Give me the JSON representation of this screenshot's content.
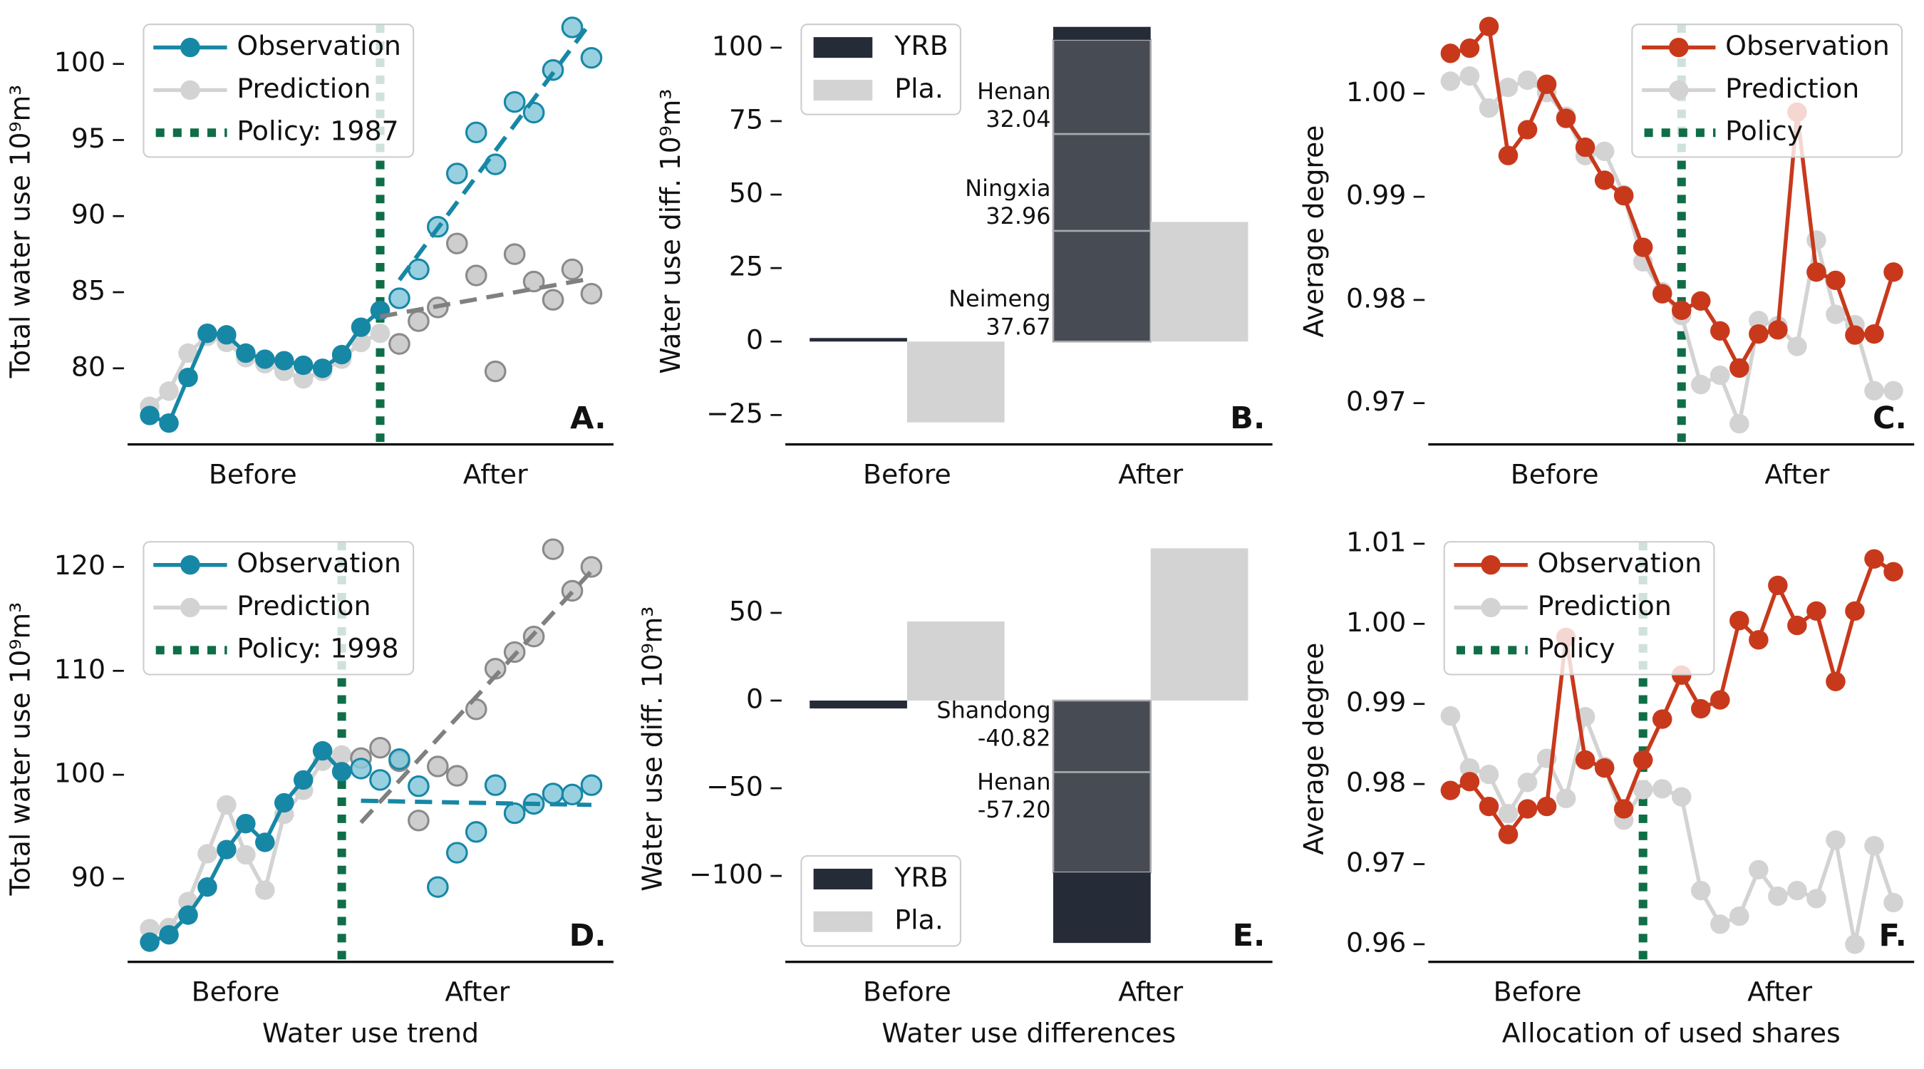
{
  "chart_data": [
    {
      "type": "line",
      "panel_label": "A.",
      "ylabel": "Total water use 10⁹m³",
      "x": [
        0,
        1,
        2,
        3,
        4,
        5,
        6,
        7,
        8,
        9,
        10,
        11,
        12,
        13,
        14,
        15,
        16,
        17,
        18,
        19,
        20,
        21,
        22,
        23
      ],
      "xlim": [
        -1.15,
        24.15
      ],
      "xticks": [
        {
          "value": 5.37,
          "label": "Before"
        },
        {
          "value": 18,
          "label": "After"
        }
      ],
      "ylim": [
        75,
        103
      ],
      "yticks": [
        80,
        85,
        90,
        95,
        100
      ],
      "legend": "upper left",
      "after_policy_style": "scatter",
      "policy": {
        "name": "Policy: 1987",
        "x": 12,
        "color": "#0f6e47"
      },
      "series": [
        {
          "name": "Observation",
          "color": "#1787a6",
          "values": [
            76.9,
            76.4,
            79.4,
            82.3,
            82.2,
            81.0,
            80.6,
            80.5,
            80.2,
            80.0,
            80.9,
            82.7,
            83.8,
            84.6,
            86.5,
            89.3,
            92.8,
            95.5,
            93.4,
            97.5,
            96.8,
            99.6,
            102.4,
            100.4
          ]
        },
        {
          "name": "Prediction",
          "color": "#d3d3d3",
          "values": [
            77.5,
            78.5,
            81.0,
            82.1,
            81.7,
            80.7,
            80.3,
            79.8,
            79.3,
            79.8,
            80.6,
            81.7,
            82.3,
            81.6,
            83.1,
            84.0,
            88.2,
            86.1,
            79.8,
            87.5,
            85.7,
            84.5,
            86.5,
            84.9
          ]
        }
      ],
      "trends": [
        {
          "color": "#1787a6",
          "x": [
            13,
            23
          ],
          "values": [
            85.8,
            102.8
          ]
        },
        {
          "color": "#808080",
          "x": [
            12,
            23
          ],
          "values": [
            83.4,
            85.9
          ]
        }
      ]
    },
    {
      "type": "bar",
      "panel_label": "B.",
      "ylabel": "Water use diff. 10⁹m³",
      "categories": [
        "Before",
        "After"
      ],
      "ylim": [
        -35,
        110
      ],
      "yticks": [
        {
          "value": -25,
          "label": "−25"
        },
        0,
        25,
        50,
        75,
        100
      ],
      "legend": "upper left",
      "series": [
        {
          "name": "YRB",
          "color": "#262b38",
          "values": [
            1.2,
            4.4
          ]
        },
        {
          "name": "Pla.",
          "color": "#d3d3d3",
          "values": [
            -27.5,
            40.7
          ]
        }
      ],
      "segments": {
        "color": "#474b53",
        "items": [
          {
            "name": "Neimeng",
            "values": [
              null,
              37.67
            ],
            "value_labels": [
              null,
              "37.67"
            ]
          },
          {
            "name": "Ningxia",
            "values": [
              null,
              32.96
            ],
            "value_labels": [
              null,
              "32.96"
            ]
          },
          {
            "name": "Henan",
            "values": [
              null,
              32.04
            ],
            "value_labels": [
              null,
              "32.04"
            ]
          }
        ]
      }
    },
    {
      "type": "line",
      "panel_label": "C.",
      "ylabel": "Average degree",
      "x": [
        0,
        1,
        2,
        3,
        4,
        5,
        6,
        7,
        8,
        9,
        10,
        11,
        12,
        13,
        14,
        15,
        16,
        17,
        18,
        19,
        20,
        21,
        22,
        23
      ],
      "xlim": [
        -1.15,
        24.08
      ],
      "xticks": [
        {
          "value": 5.41,
          "label": "Before"
        },
        {
          "value": 18,
          "label": "After"
        }
      ],
      "ylim": [
        0.966,
        1.0073
      ],
      "yticks": [
        0.97,
        0.98,
        0.99,
        {
          "value": 1,
          "label": "1.00"
        }
      ],
      "legend": "upper right",
      "policy": {
        "name": "Policy",
        "x": 12,
        "color": "#0f6e47"
      },
      "series": [
        {
          "name": "Observation",
          "color": "#c8391c",
          "values": [
            1.0039,
            1.0044,
            1.0065,
            0.994,
            0.9965,
            1.0009,
            0.9976,
            0.9948,
            0.9916,
            0.9901,
            0.9851,
            0.9806,
            0.979,
            0.9799,
            0.977,
            0.9734,
            0.9767,
            0.9771,
            0.9982,
            0.9827,
            0.9819,
            0.9766,
            0.9767,
            0.9827
          ]
        },
        {
          "name": "Prediction",
          "color": "#d3d3d3",
          "values": [
            1.0012,
            1.0017,
            0.9986,
            1.0006,
            1.0013,
            1.0001,
            0.9978,
            0.994,
            0.9944,
            0.9902,
            0.9837,
            0.9808,
            0.9785,
            0.9718,
            0.9727,
            0.968,
            0.978,
            0.9775,
            0.9755,
            0.9858,
            0.9786,
            0.9776,
            0.9712,
            0.9712
          ]
        }
      ]
    },
    {
      "type": "line",
      "panel_label": "D.",
      "ylabel": "Total water use 10⁹m³",
      "xlabel": "Water use trend",
      "x": [
        0,
        1,
        2,
        3,
        4,
        5,
        6,
        7,
        8,
        9,
        10,
        11,
        12,
        13,
        14,
        15,
        16,
        17,
        18,
        19,
        20,
        21,
        22,
        23
      ],
      "xlim": [
        -1.15,
        24.15
      ],
      "xticks": [
        {
          "value": 4.47,
          "label": "Before"
        },
        {
          "value": 17.06,
          "label": "After"
        }
      ],
      "ylim": [
        82,
        123
      ],
      "yticks": [
        90,
        100,
        110,
        120
      ],
      "legend": "upper left",
      "after_policy_style": "scatter",
      "policy": {
        "name": "Policy: 1998",
        "x": 10,
        "color": "#0f6e47"
      },
      "series": [
        {
          "name": "Observation",
          "color": "#1787a6",
          "values": [
            83.9,
            84.6,
            86.5,
            89.2,
            92.8,
            95.3,
            93.5,
            97.3,
            99.5,
            102.3,
            100.3,
            100.6,
            99.5,
            101.5,
            98.9,
            89.2,
            92.5,
            94.5,
            99.0,
            96.3,
            97.2,
            98.2,
            98.1,
            99.0
          ]
        },
        {
          "name": "Prediction",
          "color": "#d3d3d3",
          "values": [
            85.2,
            85.3,
            87.8,
            92.4,
            97.1,
            92.3,
            88.9,
            96.2,
            98.5,
            101.3,
            101.9,
            101.6,
            102.6,
            101.3,
            95.6,
            100.8,
            99.9,
            106.3,
            110.2,
            111.8,
            113.3,
            121.7,
            117.7,
            120.0
          ]
        }
      ],
      "trends": [
        {
          "color": "#808080",
          "x": [
            11,
            23
          ],
          "values": [
            95.4,
            119.6
          ]
        },
        {
          "color": "#1787a6",
          "x": [
            11,
            23
          ],
          "values": [
            97.5,
            97.1
          ]
        }
      ]
    },
    {
      "type": "bar",
      "panel_label": "E.",
      "ylabel": "Water use diff. 10⁹m³",
      "xlabel": "Water use differences",
      "categories": [
        "Before",
        "After"
      ],
      "ylim": [
        -149,
        94
      ],
      "yticks": [
        {
          "value": -100,
          "label": "−100"
        },
        {
          "value": -50,
          "label": "−50"
        },
        0,
        50
      ],
      "legend": "lower left",
      "series": [
        {
          "name": "YRB",
          "color": "#262b38",
          "values": [
            -4.5,
            -40.2
          ]
        },
        {
          "name": "Pla.",
          "color": "#d3d3d3",
          "values": [
            45.1,
            86.8
          ]
        }
      ],
      "segments": {
        "color": "#474b53",
        "items": [
          {
            "name": "Shandong",
            "values": [
              null,
              -40.82
            ],
            "value_labels": [
              null,
              "-40.82"
            ]
          },
          {
            "name": "Henan",
            "values": [
              null,
              -57.2
            ],
            "value_labels": [
              null,
              "-57.20"
            ]
          }
        ]
      }
    },
    {
      "type": "line",
      "panel_label": "F.",
      "ylabel": "Average degree",
      "xlabel": "Allocation of used shares",
      "x": [
        0,
        1,
        2,
        3,
        4,
        5,
        6,
        7,
        8,
        9,
        10,
        11,
        12,
        13,
        14,
        15,
        16,
        17,
        18,
        19,
        20,
        21,
        22,
        23
      ],
      "xlim": [
        -1.15,
        24.08
      ],
      "xticks": [
        {
          "value": 4.52,
          "label": "Before"
        },
        {
          "value": 17.1,
          "label": "After"
        }
      ],
      "ylim": [
        0.9578,
        1.011
      ],
      "yticks": [
        0.96,
        0.97,
        0.98,
        0.99,
        {
          "value": 1,
          "label": "1.00"
        },
        1.01
      ],
      "legend": "upper left",
      "policy": {
        "name": "Policy",
        "x": 10,
        "color": "#0f6e47"
      },
      "series": [
        {
          "name": "Observation",
          "color": "#c8391c",
          "values": [
            0.9792,
            0.9803,
            0.9772,
            0.9737,
            0.9769,
            0.9772,
            0.9983,
            0.983,
            0.982,
            0.9769,
            0.983,
            0.9881,
            0.9936,
            0.9894,
            0.9905,
            1.0004,
            0.998,
            1.0048,
            0.9998,
            1.0016,
            0.9928,
            1.0016,
            1.0081,
            1.0065
          ]
        },
        {
          "name": "Prediction",
          "color": "#d3d3d3",
          "values": [
            0.9885,
            0.982,
            0.9812,
            0.9763,
            0.9802,
            0.9832,
            0.9782,
            0.9884,
            0.9822,
            0.9755,
            0.9793,
            0.9794,
            0.9784,
            0.9667,
            0.9625,
            0.9635,
            0.9693,
            0.966,
            0.9667,
            0.9657,
            0.973,
            0.96,
            0.9723,
            0.9652
          ]
        }
      ]
    }
  ]
}
